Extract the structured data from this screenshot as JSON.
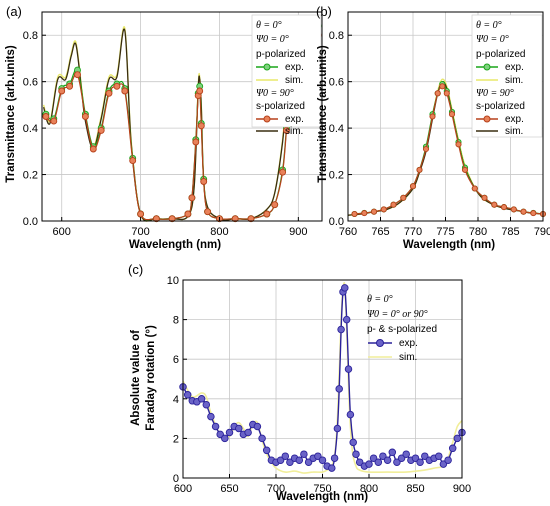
{
  "colors": {
    "grid": "#c8c8c8",
    "p_exp_line": "#1aa51a",
    "p_exp_marker_face": "#7fd17f",
    "p_sim": "#e8e86a",
    "s_exp_line": "#b7411b",
    "s_exp_marker_face": "#e8825a",
    "s_sim": "#3a2e10",
    "rot_exp": "#2b229a",
    "rot_exp_marker_face": "#6a63c7",
    "rot_sim": "#f1ee9a"
  },
  "chart_data": [
    {
      "panel_label": "(a)",
      "type": "line",
      "xlabel": "Wavelength (nm)",
      "ylabel": "Transmittance (arb.units)",
      "xlim": [
        575,
        930
      ],
      "ylim": [
        0,
        0.9
      ],
      "xticks": [
        600,
        700,
        800,
        900
      ],
      "yticks": [
        0.0,
        0.2,
        0.4,
        0.6,
        0.8
      ],
      "ytick_labels": [
        "0.0",
        "0.2",
        "0.4",
        "0.6",
        "0.8"
      ],
      "grid": true,
      "legend_position": "top-right",
      "legend": {
        "theta": "θ = 0°",
        "psi_p": "Ψ0 = 0°",
        "group_p": "p-polarized",
        "exp": "exp.",
        "sim": "sim.",
        "psi_s": "Ψ0 = 90°",
        "group_s": "s-polarized"
      },
      "series": [
        {
          "name": "p-polarized exp.",
          "x": [
            580,
            590,
            600,
            610,
            620,
            630,
            640,
            650,
            660,
            670,
            680,
            690,
            700,
            720,
            740,
            760,
            765,
            770,
            773,
            775,
            777,
            780,
            785,
            800,
            820,
            840,
            860,
            870,
            880,
            885,
            890,
            895,
            900,
            905,
            910,
            915,
            920,
            925
          ],
          "y": [
            0.46,
            0.44,
            0.57,
            0.59,
            0.65,
            0.46,
            0.32,
            0.4,
            0.56,
            0.59,
            0.57,
            0.27,
            0.03,
            0.01,
            0.01,
            0.03,
            0.1,
            0.35,
            0.55,
            0.58,
            0.42,
            0.18,
            0.04,
            0.01,
            0.01,
            0.01,
            0.03,
            0.07,
            0.22,
            0.4,
            0.58,
            0.74,
            0.79,
            0.81,
            0.82,
            0.83,
            0.85,
            0.84
          ]
        },
        {
          "name": "p-polarized sim.",
          "x": [
            577,
            585,
            595,
            605,
            612,
            618,
            625,
            630,
            640,
            650,
            660,
            670,
            680,
            688,
            700,
            720,
            740,
            760,
            768,
            773,
            775,
            777,
            782,
            800,
            820,
            840,
            860,
            870,
            880,
            885,
            890,
            900,
            910,
            920,
            928
          ],
          "y": [
            0.5,
            0.43,
            0.62,
            0.62,
            0.72,
            0.77,
            0.58,
            0.44,
            0.32,
            0.45,
            0.62,
            0.63,
            0.83,
            0.35,
            0.03,
            0.01,
            0.01,
            0.02,
            0.15,
            0.58,
            0.62,
            0.5,
            0.1,
            0.01,
            0.01,
            0.01,
            0.05,
            0.12,
            0.35,
            0.55,
            0.78,
            0.85,
            0.84,
            0.83,
            0.82
          ]
        },
        {
          "name": "s-polarized exp.",
          "x": [
            580,
            590,
            600,
            610,
            620,
            630,
            640,
            650,
            660,
            670,
            680,
            690,
            700,
            720,
            740,
            760,
            765,
            770,
            773,
            775,
            777,
            780,
            785,
            800,
            820,
            840,
            860,
            870,
            880,
            885,
            890,
            895,
            900,
            905,
            910,
            915,
            920,
            925
          ],
          "y": [
            0.45,
            0.43,
            0.56,
            0.58,
            0.63,
            0.45,
            0.31,
            0.39,
            0.55,
            0.58,
            0.56,
            0.26,
            0.03,
            0.01,
            0.01,
            0.03,
            0.1,
            0.34,
            0.54,
            0.56,
            0.41,
            0.17,
            0.04,
            0.01,
            0.01,
            0.01,
            0.03,
            0.07,
            0.21,
            0.39,
            0.57,
            0.72,
            0.76,
            0.78,
            0.79,
            0.8,
            0.81,
            0.8
          ]
        },
        {
          "name": "s-polarized sim.",
          "x": [
            577,
            585,
            595,
            605,
            612,
            618,
            625,
            630,
            640,
            650,
            660,
            670,
            680,
            688,
            700,
            720,
            740,
            760,
            768,
            773,
            775,
            777,
            782,
            800,
            820,
            840,
            860,
            870,
            880,
            885,
            890,
            900,
            910,
            920,
            928
          ],
          "y": [
            0.49,
            0.42,
            0.61,
            0.61,
            0.71,
            0.76,
            0.57,
            0.43,
            0.31,
            0.44,
            0.61,
            0.62,
            0.82,
            0.34,
            0.03,
            0.01,
            0.01,
            0.02,
            0.15,
            0.57,
            0.61,
            0.49,
            0.1,
            0.01,
            0.01,
            0.01,
            0.05,
            0.12,
            0.34,
            0.54,
            0.77,
            0.84,
            0.83,
            0.82,
            0.81
          ]
        }
      ]
    },
    {
      "panel_label": "(b)",
      "type": "line",
      "xlabel": "Wavelength (nm)",
      "ylabel": "Transmittance (arb.units)",
      "xlim": [
        760,
        790
      ],
      "ylim": [
        0,
        0.9
      ],
      "xticks": [
        760,
        765,
        770,
        775,
        780,
        785,
        790
      ],
      "yticks": [
        0.0,
        0.2,
        0.4,
        0.6,
        0.8
      ],
      "ytick_labels": [
        "0.0",
        "0.2",
        "0.4",
        "0.6",
        "0.8"
      ],
      "grid": true,
      "legend_position": "top-right",
      "legend": {
        "theta": "θ = 0°",
        "psi_p": "Ψ0 = 0°",
        "group_p": "p-polarized",
        "exp": "exp.",
        "sim": "sim.",
        "psi_s": "Ψ0 = 90°",
        "group_s": "s-polarized"
      },
      "series": [
        {
          "name": "p-polarized exp.",
          "x": [
            761,
            762.5,
            764,
            765.5,
            767,
            768.5,
            770,
            771,
            772,
            773,
            773.8,
            774.5,
            775.2,
            776,
            777,
            778,
            779.5,
            781,
            782.5,
            784,
            785.5,
            787,
            788.5,
            790
          ],
          "y": [
            0.03,
            0.035,
            0.04,
            0.05,
            0.07,
            0.1,
            0.15,
            0.22,
            0.32,
            0.46,
            0.55,
            0.59,
            0.56,
            0.47,
            0.34,
            0.23,
            0.14,
            0.1,
            0.07,
            0.06,
            0.05,
            0.04,
            0.035,
            0.03
          ]
        },
        {
          "name": "p-polarized sim.",
          "x": [
            760,
            762,
            764,
            766,
            768,
            770,
            771,
            772,
            773,
            773.8,
            774.5,
            775.2,
            776,
            777,
            778,
            780,
            782,
            784,
            786,
            788,
            790
          ],
          "y": [
            0.025,
            0.03,
            0.04,
            0.05,
            0.08,
            0.14,
            0.21,
            0.31,
            0.45,
            0.56,
            0.61,
            0.58,
            0.48,
            0.35,
            0.24,
            0.12,
            0.075,
            0.055,
            0.045,
            0.035,
            0.03
          ]
        },
        {
          "name": "s-polarized exp.",
          "x": [
            761,
            762.5,
            764,
            765.5,
            767,
            768.5,
            770,
            771,
            772,
            773,
            773.8,
            774.5,
            775.2,
            776,
            777,
            778,
            779.5,
            781,
            782.5,
            784,
            785.5,
            787,
            788.5,
            790
          ],
          "y": [
            0.03,
            0.034,
            0.04,
            0.05,
            0.07,
            0.1,
            0.15,
            0.22,
            0.31,
            0.45,
            0.55,
            0.58,
            0.55,
            0.46,
            0.33,
            0.22,
            0.14,
            0.1,
            0.07,
            0.06,
            0.05,
            0.04,
            0.034,
            0.03
          ]
        },
        {
          "name": "s-polarized sim.",
          "x": [
            760,
            762,
            764,
            766,
            768,
            770,
            771,
            772,
            773,
            773.8,
            774.5,
            775.2,
            776,
            777,
            778,
            780,
            782,
            784,
            786,
            788,
            790
          ],
          "y": [
            0.025,
            0.03,
            0.04,
            0.05,
            0.08,
            0.14,
            0.21,
            0.3,
            0.44,
            0.55,
            0.6,
            0.57,
            0.47,
            0.34,
            0.23,
            0.12,
            0.075,
            0.055,
            0.045,
            0.035,
            0.03
          ]
        }
      ]
    },
    {
      "panel_label": "(c)",
      "type": "line",
      "xlabel": "Wavelength (nm)",
      "ylabel_line1": "Absolute value of",
      "ylabel_line2": "Faraday rotation (°)",
      "xlim": [
        600,
        900
      ],
      "ylim": [
        0,
        10
      ],
      "xticks": [
        600,
        650,
        700,
        750,
        800,
        850,
        900
      ],
      "yticks": [
        0,
        2,
        4,
        6,
        8,
        10
      ],
      "ytick_labels": [
        "0",
        "2",
        "4",
        "6",
        "8",
        "10"
      ],
      "grid": true,
      "legend_position": "top-right",
      "legend": {
        "theta": "θ = 0°",
        "psi": "Ψ0 = 0° or 90°",
        "group": "p- & s-polarized",
        "exp": "exp.",
        "sim": "sim."
      },
      "series": [
        {
          "name": "exp.",
          "x": [
            600,
            605,
            610,
            615,
            620,
            625,
            630,
            635,
            640,
            645,
            650,
            655,
            660,
            665,
            670,
            675,
            680,
            685,
            690,
            695,
            700,
            705,
            710,
            715,
            720,
            725,
            730,
            735,
            740,
            745,
            750,
            755,
            760,
            763,
            766,
            768,
            770,
            772,
            774,
            776,
            778,
            780,
            783,
            786,
            790,
            795,
            800,
            805,
            810,
            815,
            820,
            825,
            830,
            835,
            840,
            845,
            850,
            855,
            860,
            865,
            870,
            875,
            880,
            885,
            890,
            895,
            900
          ],
          "y": [
            4.6,
            4.2,
            3.9,
            3.85,
            4.0,
            3.7,
            3.1,
            2.6,
            2.2,
            2.0,
            2.3,
            2.6,
            2.5,
            2.2,
            2.3,
            2.7,
            2.6,
            2.0,
            1.4,
            0.9,
            0.8,
            0.9,
            1.1,
            0.8,
            1.0,
            0.9,
            1.2,
            0.8,
            1.0,
            1.1,
            0.9,
            0.6,
            0.5,
            1.0,
            2.5,
            4.5,
            7.5,
            9.4,
            9.6,
            8.0,
            5.5,
            3.2,
            1.8,
            1.2,
            0.8,
            0.6,
            0.7,
            1.0,
            0.8,
            1.1,
            0.9,
            1.3,
            0.8,
            1.0,
            1.2,
            0.9,
            1.0,
            0.8,
            1.1,
            0.9,
            1.0,
            1.1,
            0.7,
            0.9,
            1.5,
            2.0,
            2.3
          ]
        },
        {
          "name": "sim.",
          "x": [
            600,
            610,
            620,
            625,
            630,
            640,
            650,
            655,
            660,
            665,
            670,
            675,
            680,
            685,
            690,
            695,
            700,
            710,
            720,
            730,
            740,
            750,
            755,
            760,
            764,
            767,
            770,
            772,
            774,
            776,
            779,
            782,
            786,
            790,
            800,
            820,
            840,
            860,
            870,
            880,
            885,
            890,
            895,
            900
          ],
          "y": [
            4.9,
            4.1,
            4.3,
            4.1,
            3.3,
            2.2,
            2.1,
            2.6,
            2.8,
            2.5,
            2.1,
            2.7,
            2.8,
            1.9,
            1.2,
            0.8,
            0.5,
            0.3,
            0.35,
            0.25,
            0.3,
            0.3,
            0.4,
            0.6,
            1.5,
            4.0,
            8.0,
            9.5,
            9.7,
            7.5,
            3.5,
            1.4,
            0.6,
            0.4,
            0.3,
            0.3,
            0.3,
            0.4,
            0.5,
            0.6,
            1.0,
            1.8,
            2.6,
            2.9
          ]
        }
      ]
    }
  ]
}
